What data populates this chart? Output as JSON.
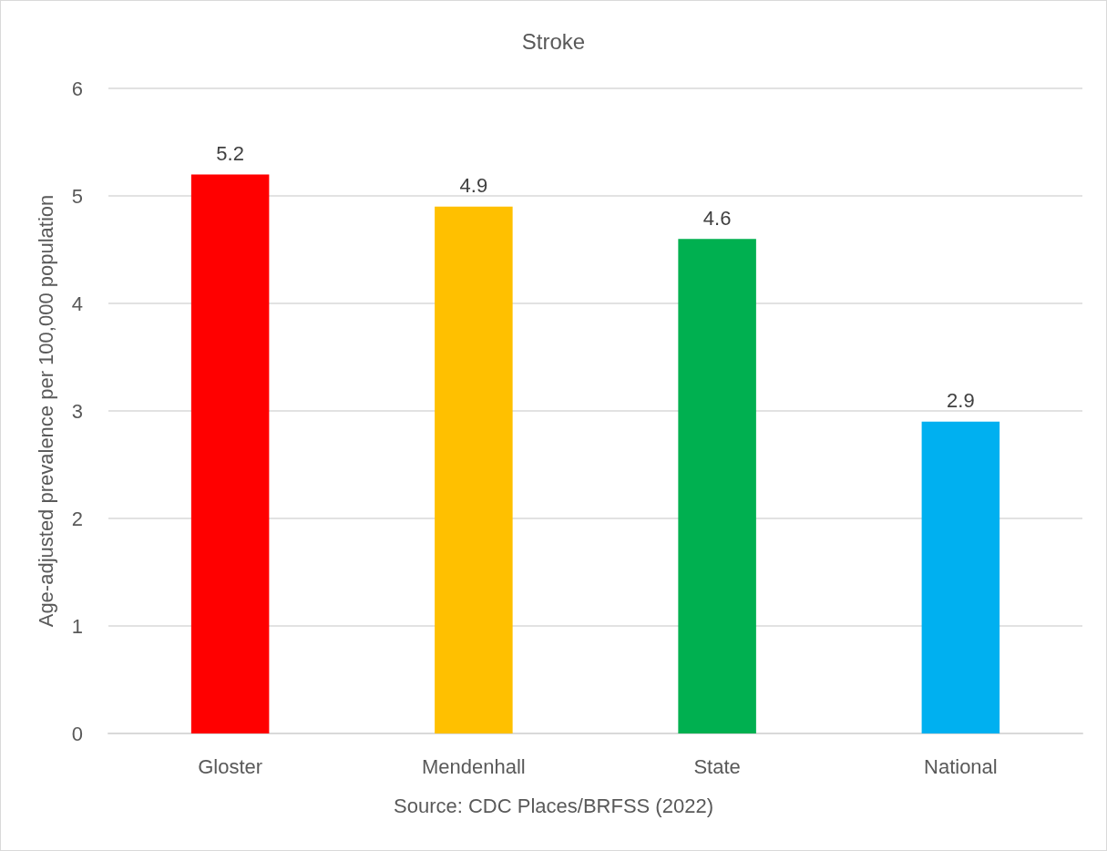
{
  "chart_data": {
    "type": "bar",
    "title": "Stroke",
    "ylabel": "Age-adjusted prevalence per 100,000 population",
    "annotations": [
      "Source: CDC Places/BRFSS (2022)"
    ],
    "categories": [
      "Gloster",
      "Mendenhall",
      "State",
      "National"
    ],
    "values": [
      5.2,
      4.9,
      4.6,
      2.9
    ],
    "colors": [
      "#ff0000",
      "#ffc000",
      "#00b050",
      "#00b0f0"
    ],
    "ylim": [
      0,
      6
    ],
    "yticks": [
      0,
      1,
      2,
      3,
      4,
      5,
      6
    ],
    "grid": "y",
    "data_labels": true
  }
}
